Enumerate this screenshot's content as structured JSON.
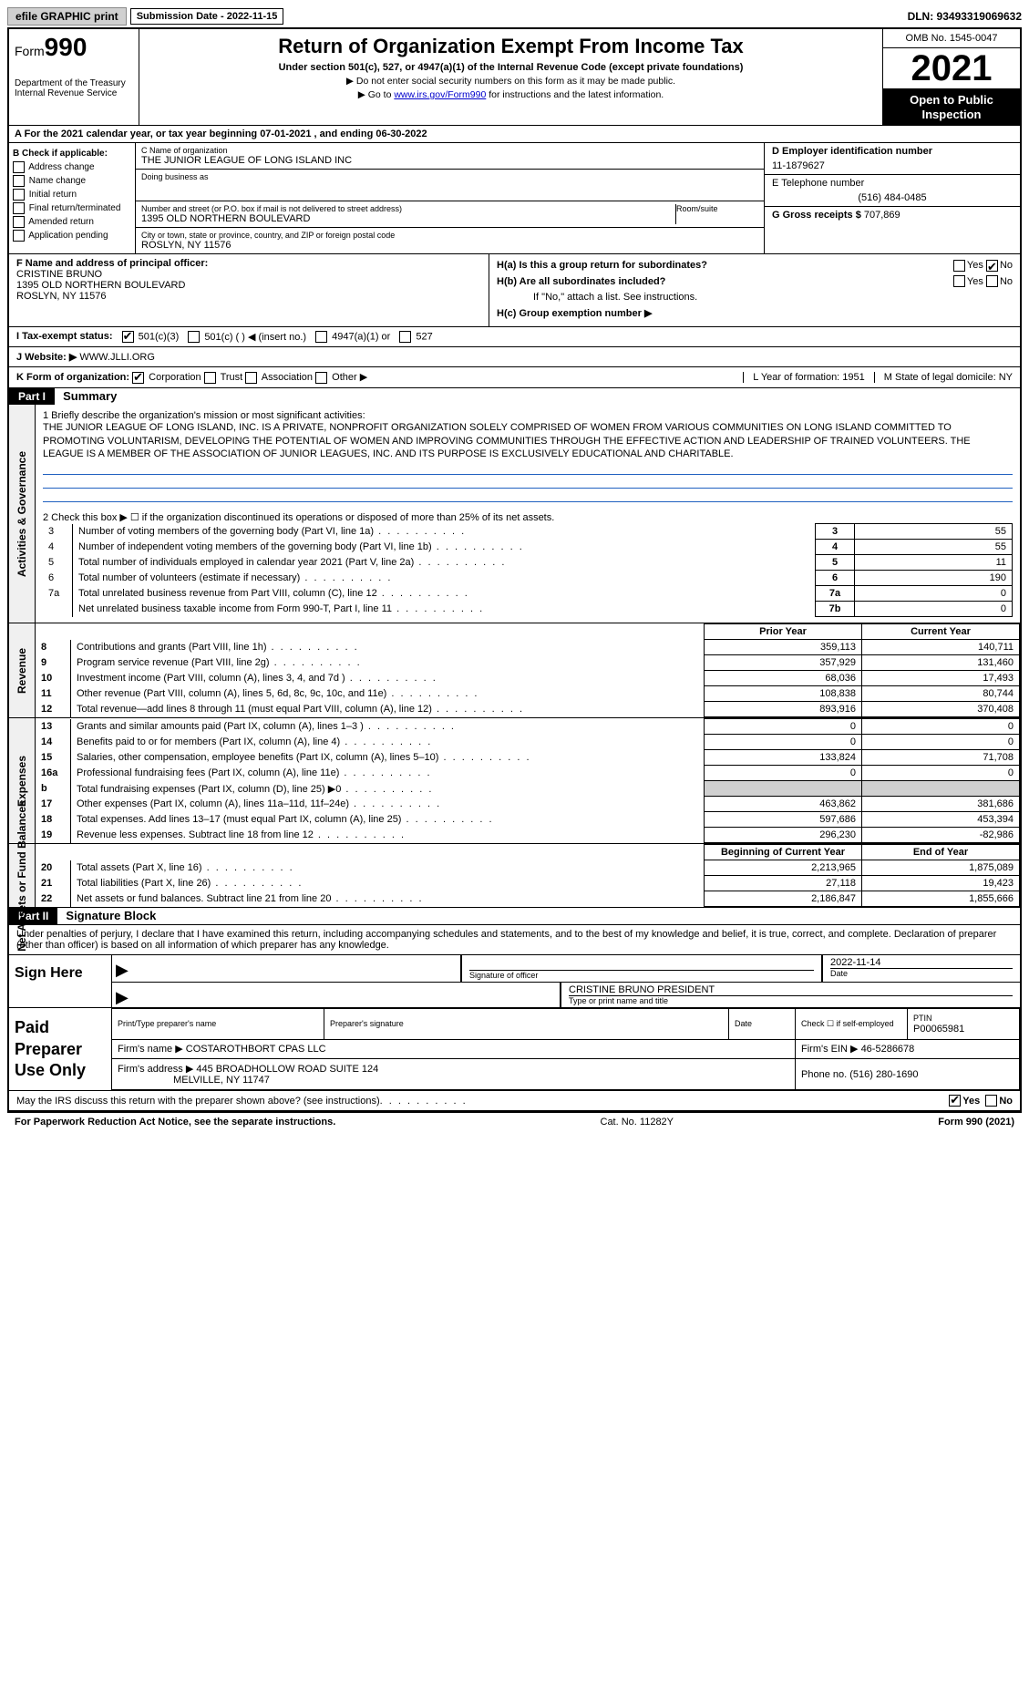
{
  "top": {
    "efile": "efile GRAPHIC print",
    "submission": "Submission Date - 2022-11-15",
    "dln": "DLN: 93493319069632"
  },
  "header": {
    "form_prefix": "Form",
    "form_num": "990",
    "dept": "Department of the Treasury",
    "irs": "Internal Revenue Service",
    "title": "Return of Organization Exempt From Income Tax",
    "sub": "Under section 501(c), 527, or 4947(a)(1) of the Internal Revenue Code (except private foundations)",
    "note1": "▶ Do not enter social security numbers on this form as it may be made public.",
    "note2_pre": "▶ Go to ",
    "note2_link": "www.irs.gov/Form990",
    "note2_post": " for instructions and the latest information.",
    "omb": "OMB No. 1545-0047",
    "year": "2021",
    "open": "Open to Public Inspection"
  },
  "rowA": "A For the 2021 calendar year, or tax year beginning 07-01-2021    , and ending 06-30-2022",
  "colB": {
    "title": "B Check if applicable:",
    "items": [
      "Address change",
      "Name change",
      "Initial return",
      "Final return/terminated",
      "Amended return",
      "Application pending"
    ]
  },
  "colC": {
    "name_lbl": "C Name of organization",
    "name": "THE JUNIOR LEAGUE OF LONG ISLAND INC",
    "dba_lbl": "Doing business as",
    "addr_lbl": "Number and street (or P.O. box if mail is not delivered to street address)",
    "addr": "1395 OLD NORTHERN BOULEVARD",
    "room_lbl": "Room/suite",
    "city_lbl": "City or town, state or province, country, and ZIP or foreign postal code",
    "city": "ROSLYN, NY  11576"
  },
  "colD": {
    "ein_lbl": "D Employer identification number",
    "ein": "11-1879627",
    "tel_lbl": "E Telephone number",
    "tel": "(516) 484-0485",
    "gross_lbl": "G Gross receipts $",
    "gross": "707,869"
  },
  "colF": {
    "lbl": "F  Name and address of principal officer:",
    "name": "CRISTINE BRUNO",
    "addr1": "1395 OLD NORTHERN BOULEVARD",
    "addr2": "ROSLYN, NY  11576"
  },
  "colH": {
    "ha": "H(a)  Is this a group return for subordinates?",
    "hb": "H(b)  Are all subordinates included?",
    "hb_note": "If \"No,\" attach a list. See instructions.",
    "hc": "H(c)  Group exemption number ▶"
  },
  "rowI": {
    "lbl": "I   Tax-exempt status:",
    "o1": "501(c)(3)",
    "o2": "501(c) (  ) ◀ (insert no.)",
    "o3": "4947(a)(1) or",
    "o4": "527"
  },
  "rowJ": {
    "lbl": "J   Website: ▶",
    "val": "WWW.JLLI.ORG"
  },
  "rowK": {
    "lbl": "K Form of organization:",
    "opts": [
      "Corporation",
      "Trust",
      "Association",
      "Other ▶"
    ],
    "l": "L Year of formation: 1951",
    "m": "M State of legal domicile: NY"
  },
  "part1": {
    "hdr": "Part I",
    "title": "Summary",
    "tab1": "Activities & Governance",
    "tab2": "Revenue",
    "tab3": "Expenses",
    "tab4": "Net Assets or Fund Balances",
    "l1_lbl": "1  Briefly describe the organization's mission or most significant activities:",
    "l1_txt": "THE JUNIOR LEAGUE OF LONG ISLAND, INC. IS A PRIVATE, NONPROFIT ORGANIZATION SOLELY COMPRISED OF WOMEN FROM VARIOUS COMMUNITIES ON LONG ISLAND COMMITTED TO PROMOTING VOLUNTARISM, DEVELOPING THE POTENTIAL OF WOMEN AND IMPROVING COMMUNITIES THROUGH THE EFFECTIVE ACTION AND LEADERSHIP OF TRAINED VOLUNTEERS. THE LEAGUE IS A MEMBER OF THE ASSOCIATION OF JUNIOR LEAGUES, INC. AND ITS PURPOSE IS EXCLUSIVELY EDUCATIONAL AND CHARITABLE.",
    "l2": "2    Check this box ▶ ☐  if the organization discontinued its operations or disposed of more than 25% of its net assets.",
    "lines_gov": [
      {
        "n": "3",
        "d": "Number of voting members of the governing body (Part VI, line 1a)",
        "k": "3",
        "v": "55"
      },
      {
        "n": "4",
        "d": "Number of independent voting members of the governing body (Part VI, line 1b)",
        "k": "4",
        "v": "55"
      },
      {
        "n": "5",
        "d": "Total number of individuals employed in calendar year 2021 (Part V, line 2a)",
        "k": "5",
        "v": "11"
      },
      {
        "n": "6",
        "d": "Total number of volunteers (estimate if necessary)",
        "k": "6",
        "v": "190"
      },
      {
        "n": "7a",
        "d": "Total unrelated business revenue from Part VIII, column (C), line 12",
        "k": "7a",
        "v": "0"
      },
      {
        "n": "",
        "d": "Net unrelated business taxable income from Form 990-T, Part I, line 11",
        "k": "7b",
        "v": "0"
      }
    ],
    "col_prior": "Prior Year",
    "col_current": "Current Year",
    "lines_rev": [
      {
        "n": "8",
        "d": "Contributions and grants (Part VIII, line 1h)",
        "p": "359,113",
        "c": "140,711"
      },
      {
        "n": "9",
        "d": "Program service revenue (Part VIII, line 2g)",
        "p": "357,929",
        "c": "131,460"
      },
      {
        "n": "10",
        "d": "Investment income (Part VIII, column (A), lines 3, 4, and 7d )",
        "p": "68,036",
        "c": "17,493"
      },
      {
        "n": "11",
        "d": "Other revenue (Part VIII, column (A), lines 5, 6d, 8c, 9c, 10c, and 11e)",
        "p": "108,838",
        "c": "80,744"
      },
      {
        "n": "12",
        "d": "Total revenue—add lines 8 through 11 (must equal Part VIII, column (A), line 12)",
        "p": "893,916",
        "c": "370,408"
      }
    ],
    "lines_exp": [
      {
        "n": "13",
        "d": "Grants and similar amounts paid (Part IX, column (A), lines 1–3 )",
        "p": "0",
        "c": "0"
      },
      {
        "n": "14",
        "d": "Benefits paid to or for members (Part IX, column (A), line 4)",
        "p": "0",
        "c": "0"
      },
      {
        "n": "15",
        "d": "Salaries, other compensation, employee benefits (Part IX, column (A), lines 5–10)",
        "p": "133,824",
        "c": "71,708"
      },
      {
        "n": "16a",
        "d": "Professional fundraising fees (Part IX, column (A), line 11e)",
        "p": "0",
        "c": "0"
      },
      {
        "n": "b",
        "d": "Total fundraising expenses (Part IX, column (D), line 25) ▶0",
        "p": "",
        "c": "",
        "gray": true
      },
      {
        "n": "17",
        "d": "Other expenses (Part IX, column (A), lines 11a–11d, 11f–24e)",
        "p": "463,862",
        "c": "381,686"
      },
      {
        "n": "18",
        "d": "Total expenses. Add lines 13–17 (must equal Part IX, column (A), line 25)",
        "p": "597,686",
        "c": "453,394"
      },
      {
        "n": "19",
        "d": "Revenue less expenses. Subtract line 18 from line 12",
        "p": "296,230",
        "c": "-82,986"
      }
    ],
    "col_begin": "Beginning of Current Year",
    "col_end": "End of Year",
    "lines_net": [
      {
        "n": "20",
        "d": "Total assets (Part X, line 16)",
        "p": "2,213,965",
        "c": "1,875,089"
      },
      {
        "n": "21",
        "d": "Total liabilities (Part X, line 26)",
        "p": "27,118",
        "c": "19,423"
      },
      {
        "n": "22",
        "d": "Net assets or fund balances. Subtract line 21 from line 20",
        "p": "2,186,847",
        "c": "1,855,666"
      }
    ]
  },
  "part2": {
    "hdr": "Part II",
    "title": "Signature Block",
    "penalty": "Under penalties of perjury, I declare that I have examined this return, including accompanying schedules and statements, and to the best of my knowledge and belief, it is true, correct, and complete. Declaration of preparer (other than officer) is based on all information of which preparer has any knowledge.",
    "sign_here": "Sign Here",
    "sig_officer": "Signature of officer",
    "date": "Date",
    "sig_date": "2022-11-14",
    "name_title": "CRISTINE BRUNO  PRESIDENT",
    "type_name": "Type or print name and title",
    "paid": "Paid Preparer Use Only",
    "prep_name_lbl": "Print/Type preparer's name",
    "prep_sig_lbl": "Preparer's signature",
    "prep_date_lbl": "Date",
    "prep_check": "Check ☐ if self-employed",
    "ptin_lbl": "PTIN",
    "ptin": "P00065981",
    "firm_name_lbl": "Firm's name    ▶",
    "firm_name": "COSTAROTHBORT CPAS LLC",
    "firm_ein_lbl": "Firm's EIN ▶",
    "firm_ein": "46-5286678",
    "firm_addr_lbl": "Firm's address ▶",
    "firm_addr": "445 BROADHOLLOW ROAD SUITE 124",
    "firm_city": "MELVILLE, NY  11747",
    "phone_lbl": "Phone no.",
    "phone": "(516) 280-1690",
    "discuss": "May the IRS discuss this return with the preparer shown above? (see instructions)",
    "yes": "Yes",
    "no": "No"
  },
  "footer": {
    "paperwork": "For Paperwork Reduction Act Notice, see the separate instructions.",
    "cat": "Cat. No. 11282Y",
    "form": "Form 990 (2021)"
  }
}
